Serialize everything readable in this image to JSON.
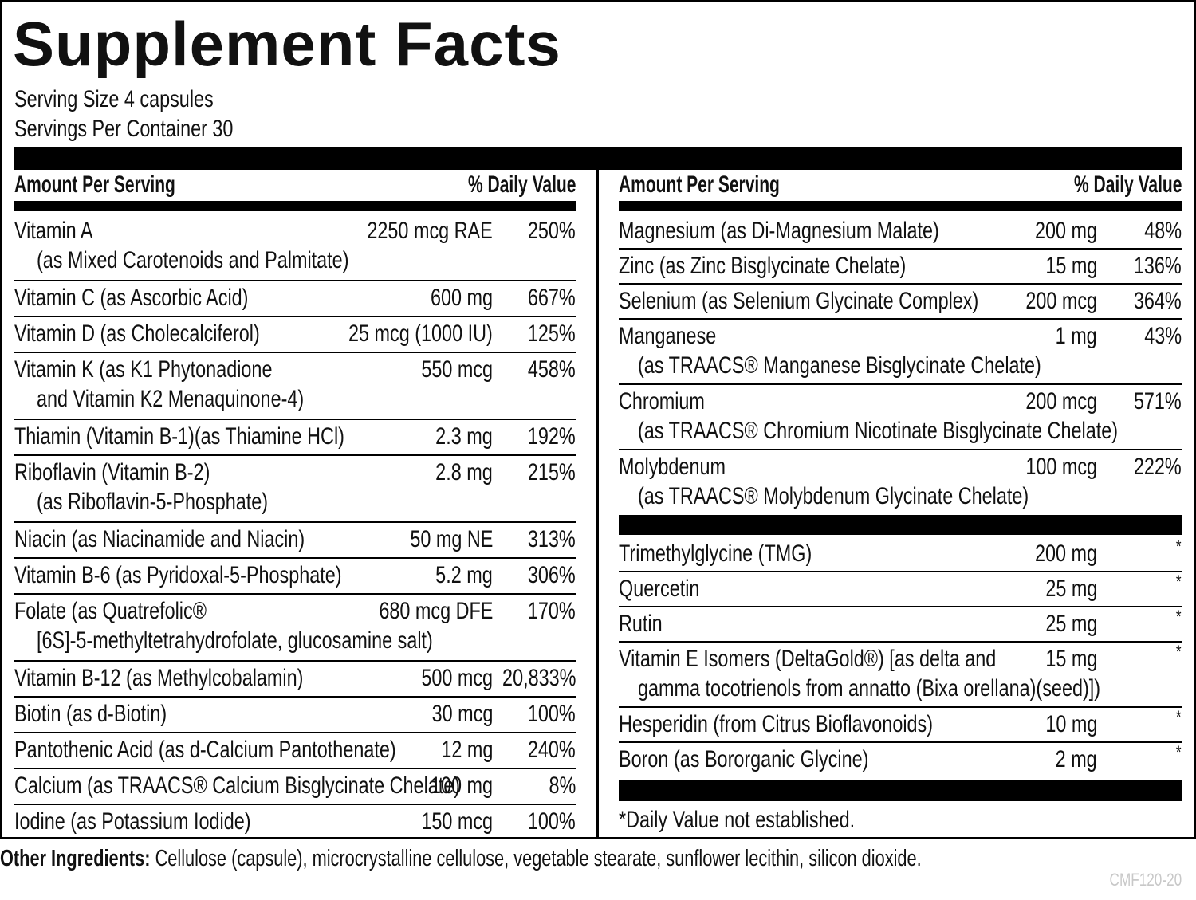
{
  "title": "Supplement Facts",
  "serving_size": "Serving Size 4 capsules",
  "servings_per_container": "Servings Per Container 30",
  "left": {
    "header": {
      "amount": "Amount Per Serving",
      "dv": "% Daily Value"
    },
    "rows": [
      {
        "name": "Vitamin A",
        "detail": "(as Mixed Carotenoids and Palmitate)",
        "amount": "2250 mcg RAE",
        "dv": "250%"
      },
      {
        "name": "Vitamin C (as Ascorbic Acid)",
        "amount": "600 mg",
        "dv": "667%"
      },
      {
        "name": "Vitamin D (as Cholecalciferol)",
        "amount": "25 mcg (1000 IU)",
        "dv": "125%"
      },
      {
        "name": "Vitamin K (as K1 Phytonadione",
        "detail": "and Vitamin K2 Menaquinone-4)",
        "amount": "550 mcg",
        "dv": "458%"
      },
      {
        "name": "Thiamin (Vitamin B-1)(as Thiamine HCl)",
        "amount": "2.3 mg",
        "dv": "192%"
      },
      {
        "name": "Riboflavin (Vitamin B-2)",
        "detail": "(as Riboflavin-5-Phosphate)",
        "amount": "2.8 mg",
        "dv": "215%"
      },
      {
        "name": "Niacin (as Niacinamide and Niacin)",
        "amount": "50 mg NE",
        "dv": "313%"
      },
      {
        "name": "Vitamin B-6 (as Pyridoxal-5-Phosphate)",
        "amount": "5.2 mg",
        "dv": "306%"
      },
      {
        "name": "Folate (as Quatrefolic®",
        "detail": "[6S]-5-methyltetrahydrofolate, glucosamine salt)",
        "amount": "680 mcg DFE",
        "dv": "170%"
      },
      {
        "name": "Vitamin B-12 (as Methylcobalamin)",
        "amount": "500 mcg",
        "dv": "20,833%"
      },
      {
        "name": "Biotin (as d-Biotin)",
        "amount": "30 mcg",
        "dv": "100%"
      },
      {
        "name": "Pantothenic Acid (as d-Calcium Pantothenate)",
        "amount": "12 mg",
        "dv": "240%"
      },
      {
        "name": "Calcium (as TRAACS® Calcium Bisglycinate Chelate)",
        "amount": "100 mg",
        "dv": "8%"
      },
      {
        "name": "Iodine (as Potassium Iodide)",
        "amount": "150 mcg",
        "dv": "100%"
      }
    ]
  },
  "right": {
    "header": {
      "amount": "Amount Per Serving",
      "dv": "% Daily Value"
    },
    "rows": [
      {
        "name": "Magnesium (as Di-Magnesium Malate)",
        "amount": "200 mg",
        "dv": "48%"
      },
      {
        "name": "Zinc (as Zinc Bisglycinate Chelate)",
        "amount": "15 mg",
        "dv": "136%"
      },
      {
        "name": "Selenium (as Selenium Glycinate Complex)",
        "amount": "200 mcg",
        "dv": "364%"
      },
      {
        "name": "Manganese",
        "detail": "(as TRAACS® Manganese Bisglycinate Chelate)",
        "amount": "1 mg",
        "dv": "43%"
      },
      {
        "name": "Chromium",
        "detail": "(as TRAACS® Chromium Nicotinate Bisglycinate Chelate)",
        "amount": "200 mcg",
        "dv": "571%"
      },
      {
        "name": "Molybdenum",
        "detail": "(as TRAACS® Molybdenum Glycinate Chelate)",
        "amount": "100 mcg",
        "dv": "222%"
      }
    ],
    "other_rows": [
      {
        "name": "Trimethylglycine (TMG)",
        "amount": "200 mg",
        "dv": "*"
      },
      {
        "name": "Quercetin",
        "amount": "25 mg",
        "dv": "*"
      },
      {
        "name": "Rutin",
        "amount": "25 mg",
        "dv": "*"
      },
      {
        "name": "Vitamin E Isomers (DeltaGold®) [as delta and",
        "detail": "gamma tocotrienols from annatto (Bixa orellana)(seed)])",
        "amount": "15 mg",
        "dv": "*"
      },
      {
        "name": "Hesperidin (from Citrus Bioflavonoids)",
        "amount": "10 mg",
        "dv": "*"
      },
      {
        "name": "Boron (as Bororganic Glycine)",
        "amount": "2 mg",
        "dv": "*"
      }
    ],
    "footnote": "*Daily Value not established."
  },
  "other_ingredients": {
    "label": "Other Ingredients:",
    "text": "Cellulose (capsule), microcrystalline cellulose, vegetable stearate, sunflower lecithin, silicon dioxide."
  },
  "code": "CMF120-20"
}
